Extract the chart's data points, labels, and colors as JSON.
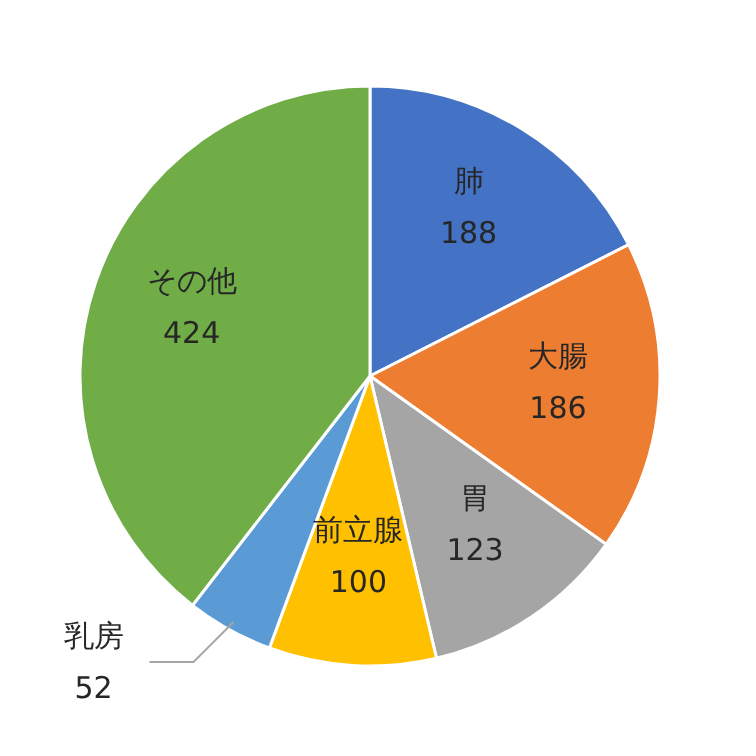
{
  "chart_data": {
    "type": "pie",
    "categories": [
      "肺",
      "大腸",
      "胃",
      "前立腺",
      "乳房",
      "その他"
    ],
    "values": [
      188,
      186,
      123,
      100,
      52,
      424
    ],
    "colors": [
      "#4472c4",
      "#ed7d31",
      "#a5a5a5",
      "#ffc000",
      "#5b9bd5",
      "#70ad47"
    ],
    "data_labels": true
  }
}
